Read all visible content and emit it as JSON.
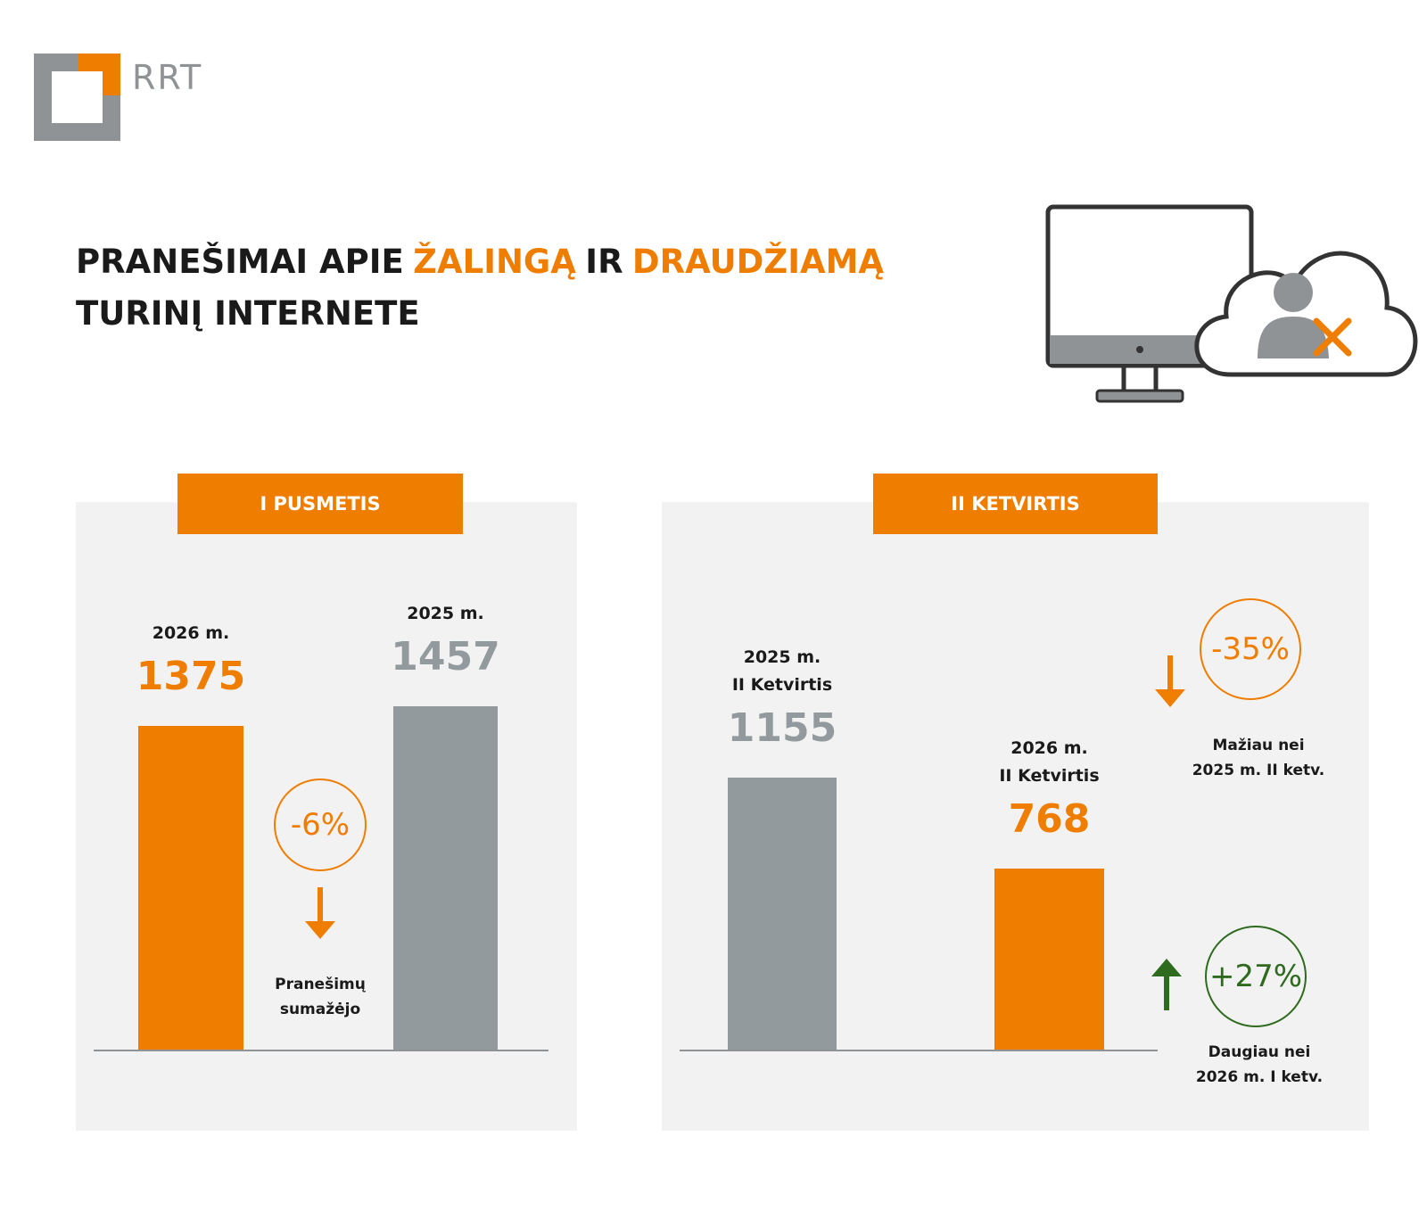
{
  "logo": "RRT",
  "title_lines": [
    [
      {
        "text": "PRANEŠIMAI APIE",
        "accent": false
      },
      {
        "text": "ŽALINGĄ",
        "accent": true
      },
      {
        "text": "IR",
        "accent": false
      },
      {
        "text": "DRAUDŽIAMĄ",
        "accent": true
      }
    ],
    [
      {
        "text": "TURINĮ INTERNETE",
        "accent": false
      }
    ]
  ],
  "accent_color": "#ef7d00",
  "chart_data": [
    {
      "type": "bar",
      "title": "I PUSMETIS",
      "categories": [
        "2026 m.",
        "2025 m."
      ],
      "values": [
        1375,
        1457
      ],
      "colors": [
        "#ef7d00",
        "#939a9e"
      ],
      "annotations": [
        {
          "text": "-6%",
          "direction": "down",
          "note": "Pranešimų\nsumažėjo",
          "color": "#ef7d00"
        }
      ]
    },
    {
      "type": "bar",
      "title": "II KETVIRTIS",
      "categories": [
        "2025 m.\nII Ketvirtis",
        "2026 m.\nII Ketvirtis"
      ],
      "values": [
        1155,
        768
      ],
      "colors": [
        "#939a9e",
        "#ef7d00"
      ],
      "annotations": [
        {
          "text": "-35%",
          "direction": "down",
          "note": "Mažiau nei\n2025 m. II ketv.",
          "color": "#ef7d00"
        },
        {
          "text": "+27%",
          "direction": "up",
          "note": "Daugiau nei\n2026 m. I ketv.",
          "color": "#2e6b1e"
        }
      ]
    }
  ]
}
